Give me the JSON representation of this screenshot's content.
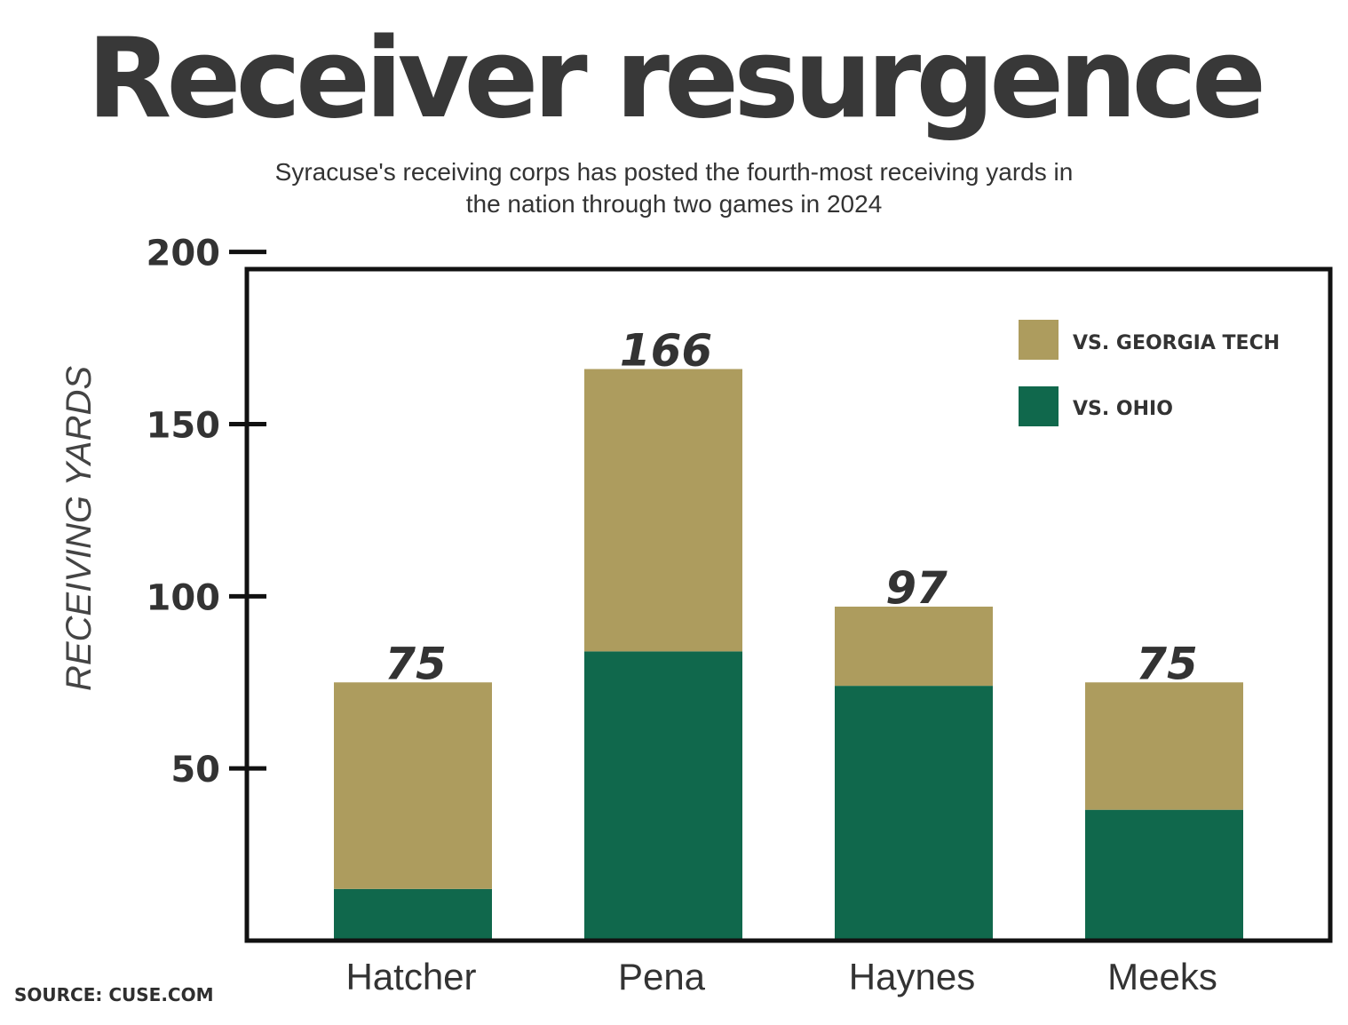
{
  "title": "Receiver resurgence",
  "subtitle": "Syracuse's receiving corps has posted the fourth-most receiving yards in the nation through two games in 2024",
  "source": "SOURCE: CUSE.COM",
  "colors": {
    "georgia_tech": "#ad9c5e",
    "ohio": "#10684c",
    "text": "#333333"
  },
  "chart_data": {
    "type": "bar",
    "stacked": true,
    "categories": [
      "Hatcher",
      "Pena",
      "Haynes",
      "Meeks"
    ],
    "series": [
      {
        "name": "VS. OHIO",
        "values": [
          15,
          84,
          74,
          38
        ],
        "color": "#10684c"
      },
      {
        "name": "VS. GEORGIA TECH",
        "values": [
          60,
          82,
          23,
          37
        ],
        "color": "#ad9c5e"
      }
    ],
    "totals": [
      "75",
      "166",
      "97",
      "75"
    ],
    "ylabel": "RECEIVING YARDS",
    "yticks": [
      50,
      100,
      150,
      200
    ],
    "ylim": [
      0,
      200
    ],
    "legend_position": "top-right",
    "grid": false
  }
}
